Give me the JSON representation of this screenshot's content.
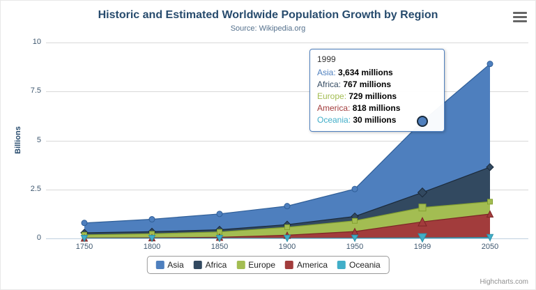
{
  "chart_data": {
    "type": "area",
    "stacking": "normal",
    "title": "Historic and Estimated Worldwide Population Growth by Region",
    "subtitle": "Source: Wikipedia.org",
    "categories": [
      "1750",
      "1800",
      "1850",
      "1900",
      "1950",
      "1999",
      "2050"
    ],
    "xlabel": "",
    "ylabel": "Billions",
    "ylim": [
      0,
      10
    ],
    "yticks": [
      "0",
      "2.5",
      "5",
      "7.5",
      "10"
    ],
    "unit": "millions",
    "grid": true,
    "legend_position": "bottom",
    "series": [
      {
        "name": "Asia",
        "color": "#4e7fbe",
        "line": "#2f5e97",
        "marker": "circle",
        "values": [
          502,
          635,
          809,
          947,
          1402,
          3634,
          5268
        ]
      },
      {
        "name": "Africa",
        "color": "#324960",
        "line": "#1b2a3a",
        "marker": "diamond",
        "values": [
          106,
          107,
          111,
          133,
          221,
          767,
          1766
        ]
      },
      {
        "name": "Europe",
        "color": "#a3bd52",
        "line": "#83a030",
        "marker": "square",
        "values": [
          163,
          203,
          276,
          408,
          547,
          729,
          628
        ]
      },
      {
        "name": "America",
        "color": "#a23c3c",
        "line": "#7c2526",
        "marker": "triangle",
        "values": [
          18,
          31,
          54,
          156,
          339,
          818,
          1201
        ]
      },
      {
        "name": "Oceania",
        "color": "#41aec8",
        "line": "#2e91a9",
        "marker": "triangle-down",
        "values": [
          2,
          2,
          2,
          6,
          13,
          30,
          46
        ]
      }
    ]
  },
  "tooltip": {
    "header": "1999",
    "hovered_point": {
      "category": "1999",
      "series": "Asia"
    },
    "rows": [
      {
        "name": "Asia",
        "value": "3,634 millions"
      },
      {
        "name": "Africa",
        "value": "767 millions"
      },
      {
        "name": "Europe",
        "value": "729 millions"
      },
      {
        "name": "America",
        "value": "818 millions"
      },
      {
        "name": "Oceania",
        "value": "30 millions"
      }
    ]
  },
  "icons": {
    "export_menu": "hamburger-icon"
  },
  "credits": "Highcharts.com"
}
